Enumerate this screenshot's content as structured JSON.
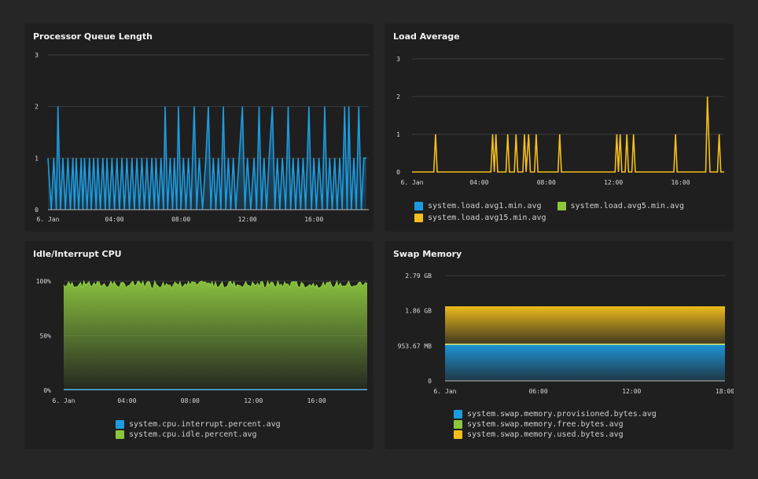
{
  "colors": {
    "blue": "#1d9be0",
    "green": "#8cc63f",
    "yellow": "#f4bf1c",
    "grid": "#3c3c3c"
  },
  "panels": {
    "queue": {
      "title": "Processor Queue Length"
    },
    "load": {
      "title": "Load Average"
    },
    "cpu": {
      "title": "Idle/Interrupt CPU"
    },
    "swap": {
      "title": "Swap Memory"
    }
  },
  "chart_data": [
    {
      "id": "queue",
      "type": "area",
      "title": "Processor Queue Length",
      "x_ticks": [
        "6. Jan",
        "04:00",
        "08:00",
        "12:00",
        "16:00"
      ],
      "y_ticks": [
        "0",
        "1",
        "2",
        "3"
      ],
      "ylim": [
        0,
        3
      ],
      "x_range_hours": [
        0,
        19.3
      ],
      "grid": true,
      "series": [
        {
          "color": "#1d9be0",
          "points": [
            [
              0,
              1
            ],
            [
              0.2,
              0
            ],
            [
              0.35,
              1
            ],
            [
              0.5,
              0
            ],
            [
              0.6,
              2
            ],
            [
              0.75,
              0
            ],
            [
              0.9,
              1
            ],
            [
              1.05,
              0
            ],
            [
              1.2,
              1
            ],
            [
              1.35,
              0
            ],
            [
              1.5,
              1
            ],
            [
              1.6,
              0
            ],
            [
              1.7,
              1
            ],
            [
              1.85,
              0
            ],
            [
              2.0,
              1
            ],
            [
              2.1,
              0
            ],
            [
              2.2,
              1
            ],
            [
              2.35,
              0
            ],
            [
              2.5,
              1
            ],
            [
              2.6,
              0
            ],
            [
              2.75,
              1
            ],
            [
              2.9,
              0
            ],
            [
              3.0,
              1
            ],
            [
              3.15,
              0
            ],
            [
              3.3,
              1
            ],
            [
              3.45,
              0
            ],
            [
              3.55,
              1
            ],
            [
              3.7,
              0
            ],
            [
              3.85,
              1
            ],
            [
              4.0,
              0
            ],
            [
              4.15,
              1
            ],
            [
              4.3,
              0
            ],
            [
              4.45,
              1
            ],
            [
              4.6,
              0
            ],
            [
              4.75,
              1
            ],
            [
              4.9,
              0
            ],
            [
              5.05,
              1
            ],
            [
              5.2,
              0
            ],
            [
              5.35,
              1
            ],
            [
              5.5,
              0
            ],
            [
              5.65,
              1
            ],
            [
              5.8,
              0
            ],
            [
              5.95,
              1
            ],
            [
              6.1,
              0
            ],
            [
              6.25,
              1
            ],
            [
              6.4,
              0
            ],
            [
              6.5,
              1
            ],
            [
              6.65,
              0
            ],
            [
              6.8,
              1
            ],
            [
              6.95,
              0
            ],
            [
              7.05,
              2
            ],
            [
              7.2,
              0
            ],
            [
              7.35,
              1
            ],
            [
              7.5,
              0
            ],
            [
              7.6,
              1
            ],
            [
              7.75,
              0
            ],
            [
              7.85,
              2
            ],
            [
              8.0,
              0
            ],
            [
              8.15,
              1
            ],
            [
              8.3,
              0
            ],
            [
              8.45,
              1
            ],
            [
              8.6,
              0
            ],
            [
              8.8,
              2
            ],
            [
              8.95,
              0
            ],
            [
              9.1,
              1
            ],
            [
              9.3,
              0
            ],
            [
              9.5,
              1
            ],
            [
              9.65,
              2
            ],
            [
              9.8,
              0
            ],
            [
              9.95,
              1
            ],
            [
              10.1,
              0
            ],
            [
              10.25,
              1
            ],
            [
              10.4,
              0
            ],
            [
              10.55,
              2
            ],
            [
              10.7,
              0
            ],
            [
              10.85,
              1
            ],
            [
              11.0,
              0
            ],
            [
              11.15,
              1
            ],
            [
              11.3,
              0
            ],
            [
              11.5,
              1
            ],
            [
              11.7,
              2
            ],
            [
              11.85,
              0
            ],
            [
              12.0,
              1
            ],
            [
              12.2,
              0
            ],
            [
              12.4,
              1
            ],
            [
              12.55,
              0
            ],
            [
              12.7,
              2
            ],
            [
              12.85,
              0
            ],
            [
              13.0,
              1
            ],
            [
              13.15,
              0
            ],
            [
              13.3,
              1
            ],
            [
              13.5,
              2
            ],
            [
              13.65,
              0
            ],
            [
              13.8,
              1
            ],
            [
              13.95,
              0
            ],
            [
              14.1,
              1
            ],
            [
              14.3,
              0
            ],
            [
              14.45,
              2
            ],
            [
              14.6,
              0
            ],
            [
              14.75,
              1
            ],
            [
              14.9,
              0
            ],
            [
              15.05,
              1
            ],
            [
              15.2,
              0
            ],
            [
              15.35,
              1
            ],
            [
              15.5,
              0
            ],
            [
              15.7,
              2
            ],
            [
              15.85,
              0
            ],
            [
              16.0,
              1
            ],
            [
              16.15,
              0
            ],
            [
              16.3,
              1
            ],
            [
              16.5,
              0
            ],
            [
              16.65,
              2
            ],
            [
              16.8,
              0
            ],
            [
              16.95,
              1
            ],
            [
              17.1,
              0
            ],
            [
              17.25,
              1
            ],
            [
              17.4,
              0
            ],
            [
              17.55,
              1
            ],
            [
              17.7,
              0
            ],
            [
              17.85,
              2
            ],
            [
              18.0,
              0
            ],
            [
              18.1,
              2
            ],
            [
              18.25,
              0
            ],
            [
              18.4,
              1
            ],
            [
              18.55,
              0
            ],
            [
              18.7,
              2
            ],
            [
              18.85,
              0
            ],
            [
              19.0,
              1
            ],
            [
              19.15,
              1
            ]
          ]
        }
      ]
    },
    {
      "id": "load",
      "type": "line",
      "title": "Load Average",
      "x_ticks": [
        "6. Jan",
        "04:00",
        "08:00",
        "12:00",
        "16:00"
      ],
      "y_ticks": [
        "0",
        "1",
        "2",
        "3"
      ],
      "ylim": [
        0,
        3
      ],
      "x_range_hours": [
        0,
        18.6
      ],
      "grid": true,
      "legend_position": "bottom",
      "series": [
        {
          "name": "system.load.avg1.min.avg",
          "color": "#1d9be0",
          "points": []
        },
        {
          "name": "system.load.avg5.min.avg",
          "color": "#8cc63f",
          "points": []
        },
        {
          "name": "system.load.avg15.min.avg",
          "color": "#f4bf1c",
          "points": [
            [
              0,
              0
            ],
            [
              1.3,
              0
            ],
            [
              1.4,
              1
            ],
            [
              1.5,
              0
            ],
            [
              4.7,
              0
            ],
            [
              4.8,
              1
            ],
            [
              4.9,
              0
            ],
            [
              5.0,
              1
            ],
            [
              5.1,
              0
            ],
            [
              5.6,
              0
            ],
            [
              5.7,
              1
            ],
            [
              5.8,
              0
            ],
            [
              6.1,
              0
            ],
            [
              6.2,
              1
            ],
            [
              6.3,
              0
            ],
            [
              6.6,
              0
            ],
            [
              6.7,
              1
            ],
            [
              6.8,
              0
            ],
            [
              6.95,
              1
            ],
            [
              7.05,
              0
            ],
            [
              7.3,
              0
            ],
            [
              7.4,
              1
            ],
            [
              7.5,
              0
            ],
            [
              8.7,
              0
            ],
            [
              8.8,
              1
            ],
            [
              8.9,
              0
            ],
            [
              12.1,
              0
            ],
            [
              12.2,
              1
            ],
            [
              12.3,
              0
            ],
            [
              12.4,
              1
            ],
            [
              12.5,
              0
            ],
            [
              12.7,
              0
            ],
            [
              12.8,
              1
            ],
            [
              12.9,
              0
            ],
            [
              13.1,
              0
            ],
            [
              13.2,
              1
            ],
            [
              13.3,
              0
            ],
            [
              15.6,
              0
            ],
            [
              15.7,
              1
            ],
            [
              15.8,
              0
            ],
            [
              17.5,
              0
            ],
            [
              17.6,
              2
            ],
            [
              17.75,
              0
            ],
            [
              18.2,
              0
            ],
            [
              18.3,
              1
            ],
            [
              18.4,
              0
            ],
            [
              18.6,
              0
            ]
          ]
        }
      ]
    },
    {
      "id": "cpu",
      "type": "area",
      "title": "Idle/Interrupt CPU",
      "x_ticks": [
        "6. Jan",
        "04:00",
        "08:00",
        "12:00",
        "16:00"
      ],
      "y_ticks": [
        "0%",
        "50%",
        "100%"
      ],
      "ylim": [
        0,
        100
      ],
      "x_range_hours": [
        0,
        19.2
      ],
      "grid": true,
      "legend_position": "bottom",
      "series": [
        {
          "name": "system.cpu.interrupt.percent.avg",
          "color": "#1d9be0",
          "values": "constant",
          "value": 0.5
        },
        {
          "name": "system.cpu.idle.percent.avg",
          "color": "#8cc63f",
          "value_range": [
            88,
            100
          ]
        }
      ]
    },
    {
      "id": "swap",
      "type": "area",
      "title": "Swap Memory",
      "x_ticks": [
        "6. Jan",
        "06:00",
        "12:00",
        "18:00"
      ],
      "y_ticks": [
        "0",
        "953.67 MB",
        "1.86 GB",
        "2.79 GB"
      ],
      "ylim": [
        0,
        2.79
      ],
      "y_unit": "GB",
      "x_range_hours": [
        0,
        18
      ],
      "grid": true,
      "legend_position": "bottom",
      "series": [
        {
          "name": "system.swap.memory.provisioned.bytes.avg",
          "color": "#1d9be0",
          "value": 0.97
        },
        {
          "name": "system.swap.memory.free.bytes.avg",
          "color": "#8cc63f",
          "value": 0.97
        },
        {
          "name": "system.swap.memory.used.bytes.avg",
          "color": "#f4bf1c",
          "value": 1.96
        }
      ]
    }
  ]
}
